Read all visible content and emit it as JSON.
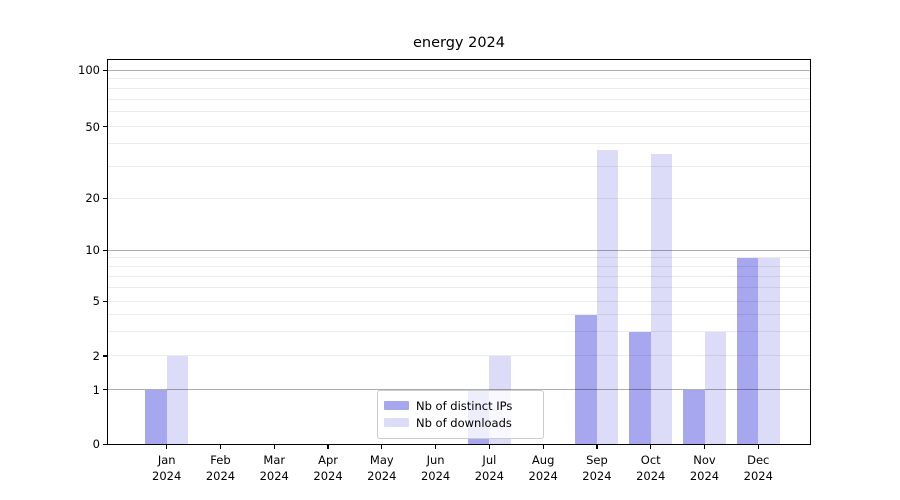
{
  "chart_data": {
    "type": "bar",
    "title": "energy 2024",
    "categories": [
      "Jan",
      "Feb",
      "Mar",
      "Apr",
      "May",
      "Jun",
      "Jul",
      "Aug",
      "Sep",
      "Oct",
      "Nov",
      "Dec"
    ],
    "category_year": "2024",
    "series": [
      {
        "name": "Nb of distinct IPs",
        "color": "#a7a7ef",
        "values": [
          1,
          0,
          0,
          0,
          0,
          0,
          1,
          0,
          4,
          3,
          1,
          9
        ]
      },
      {
        "name": "Nb of downloads",
        "color": "#dcdcf8",
        "values": [
          2,
          0,
          0,
          0,
          0,
          0,
          2,
          0,
          37,
          35,
          3,
          9
        ]
      }
    ],
    "y_axis": {
      "scale": "log-like (linear below 1)",
      "labeled_ticks": [
        0,
        1,
        2,
        5,
        10,
        20,
        50,
        100
      ],
      "decade_gridlines": [
        1,
        10,
        100
      ],
      "minor_gridlines": [
        3,
        4,
        6,
        7,
        8,
        9,
        30,
        40,
        60,
        70,
        80,
        90
      ],
      "ylim": [
        0,
        114
      ]
    },
    "legend": {
      "position": "lower center",
      "items": [
        "Nb of distinct IPs",
        "Nb of downloads"
      ]
    },
    "grid": true,
    "background": "#ffffff"
  }
}
